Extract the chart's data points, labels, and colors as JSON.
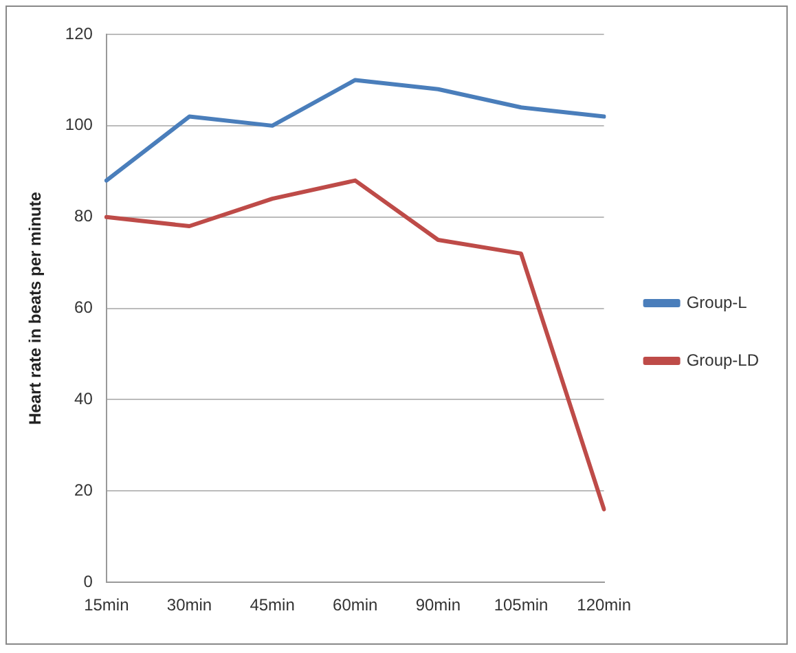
{
  "chart_data": {
    "type": "line",
    "ylabel": "Heart rate in beats per minute",
    "categories": [
      "15min",
      "30min",
      "45min",
      "60min",
      "90min",
      "105min",
      "120min"
    ],
    "series": [
      {
        "name": "Group-L",
        "color": "#4a7ebb",
        "values": [
          88,
          102,
          100,
          110,
          108,
          104,
          102
        ]
      },
      {
        "name": "Group-LD",
        "color": "#be4b48",
        "values": [
          80,
          78,
          84,
          88,
          75,
          72,
          16
        ]
      }
    ],
    "ylim": [
      0,
      120
    ],
    "yticks": [
      0,
      20,
      40,
      60,
      80,
      100,
      120
    ],
    "grid": "y",
    "legend": "right",
    "marker": "none",
    "line_style": "solid"
  }
}
